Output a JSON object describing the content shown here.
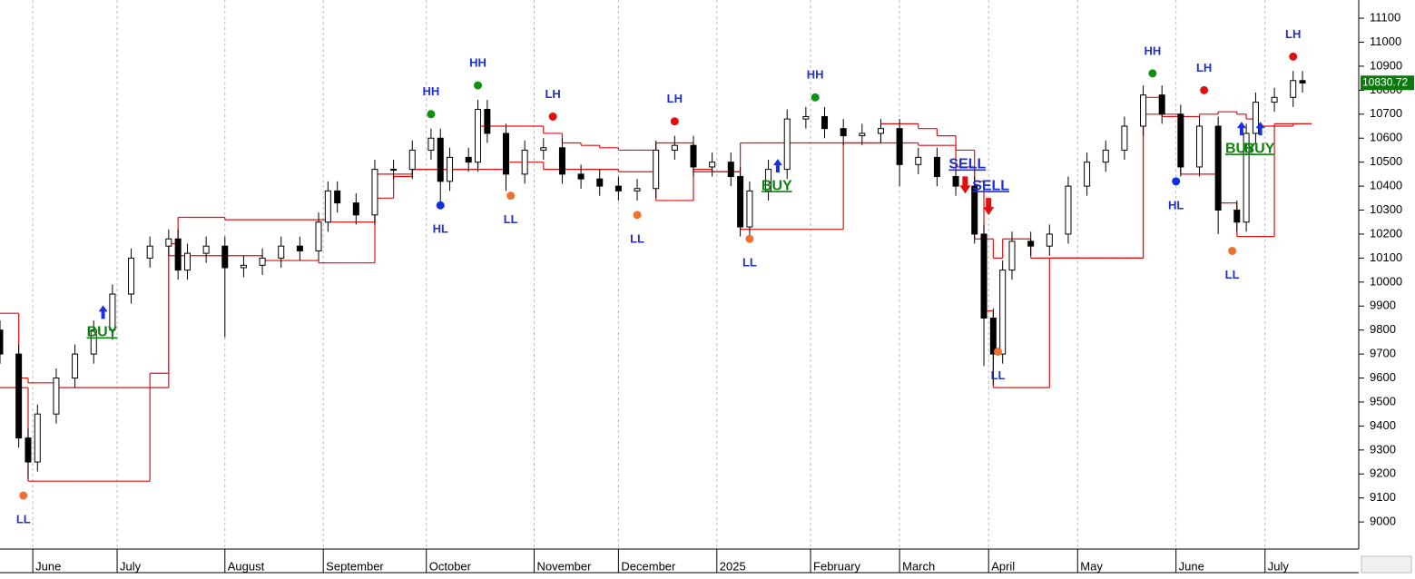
{
  "chart_data": {
    "type": "candlestick",
    "xlim": [
      0,
      290
    ],
    "ylim": [
      8887,
      11176
    ],
    "yticks": [
      9000,
      9100,
      9200,
      9300,
      9400,
      9500,
      9600,
      9700,
      9800,
      9900,
      10000,
      10100,
      10200,
      10300,
      10400,
      10500,
      10600,
      10700,
      10800,
      10900,
      11000,
      11100
    ],
    "xticks": [
      {
        "value": 7,
        "label": "June"
      },
      {
        "value": 25,
        "label": "July"
      },
      {
        "value": 48,
        "label": "August"
      },
      {
        "value": 69,
        "label": "September"
      },
      {
        "value": 91,
        "label": "October"
      },
      {
        "value": 114,
        "label": "November"
      },
      {
        "value": 132,
        "label": "December"
      },
      {
        "value": 153,
        "label": "2025"
      },
      {
        "value": 173,
        "label": "February"
      },
      {
        "value": 192,
        "label": "March"
      },
      {
        "value": 211,
        "label": "April"
      },
      {
        "value": 230,
        "label": "May"
      },
      {
        "value": 251,
        "label": "June"
      },
      {
        "value": 270,
        "label": "July"
      }
    ],
    "grid": true,
    "x": [
      0,
      4,
      6,
      8,
      12,
      16,
      20,
      24,
      28,
      32,
      36,
      38,
      40,
      44,
      48,
      52,
      56,
      60,
      64,
      68,
      70,
      72,
      76,
      80,
      84,
      88,
      92,
      94,
      96,
      100,
      102,
      104,
      108,
      112,
      116,
      120,
      124,
      128,
      132,
      136,
      140,
      144,
      148,
      152,
      156,
      158,
      160,
      164,
      168,
      172,
      176,
      180,
      184,
      188,
      192,
      196,
      200,
      204,
      208,
      210,
      212,
      214,
      216,
      220,
      224,
      228,
      232,
      236,
      240,
      244,
      248,
      252,
      256,
      260,
      264,
      266,
      268,
      272,
      276,
      278
    ],
    "open": [
      9800,
      9700,
      9350,
      9250,
      9450,
      9600,
      9700,
      9800,
      9950,
      10100,
      10150,
      10180,
      10050,
      10120,
      10150,
      10060,
      10070,
      10100,
      10150,
      10130,
      10250,
      10380,
      10330,
      10280,
      10470,
      10470,
      10550,
      10600,
      10420,
      10520,
      10500,
      10720,
      10620,
      10450,
      10550,
      10560,
      10450,
      10430,
      10400,
      10380,
      10390,
      10550,
      10570,
      10480,
      10500,
      10440,
      10230,
      10380,
      10470,
      10680,
      10690,
      10640,
      10610,
      10620,
      10640,
      10490,
      10520,
      10440,
      10400,
      10200,
      9850,
      9700,
      10050,
      10170,
      10150,
      10200,
      10400,
      10500,
      10550,
      10650,
      10780,
      10700,
      10480,
      10650,
      10300,
      10250,
      10620,
      10750,
      10770,
      10840
    ],
    "high": [
      9840,
      9740,
      9390,
      9490,
      9640,
      9740,
      9840,
      9990,
      10140,
      10190,
      10220,
      10220,
      10160,
      10190,
      10190,
      10110,
      10140,
      10190,
      10190,
      10290,
      10420,
      10420,
      10370,
      10510,
      10510,
      10590,
      10640,
      10640,
      10560,
      10560,
      10760,
      10760,
      10660,
      10590,
      10600,
      10600,
      10490,
      10470,
      10440,
      10430,
      10590,
      10610,
      10610,
      10540,
      10540,
      10480,
      10420,
      10510,
      10720,
      10730,
      10730,
      10680,
      10660,
      10680,
      10680,
      10560,
      10560,
      10480,
      10440,
      10240,
      9890,
      10090,
      10210,
      10210,
      10240,
      10440,
      10540,
      10590,
      10690,
      10820,
      10820,
      10740,
      10690,
      10690,
      10340,
      10660,
      10790,
      10810,
      10880,
      10880
    ],
    "low": [
      9660,
      9310,
      9180,
      9210,
      9410,
      9560,
      9660,
      9760,
      9910,
      10060,
      10110,
      10010,
      10010,
      10080,
      9770,
      10020,
      10030,
      10060,
      10090,
      10090,
      10210,
      10290,
      10240,
      10240,
      10430,
      10430,
      10510,
      10330,
      10380,
      10460,
      10460,
      10580,
      10380,
      10410,
      10510,
      10410,
      10390,
      10360,
      10340,
      10340,
      10350,
      10510,
      10440,
      10440,
      10400,
      10190,
      10190,
      10340,
      10430,
      10640,
      10600,
      10570,
      10570,
      10580,
      10400,
      10450,
      10400,
      10360,
      10160,
      9650,
      9570,
      9660,
      10010,
      10110,
      10110,
      10160,
      10360,
      10460,
      10510,
      10610,
      10660,
      10440,
      10440,
      10200,
      10210,
      10210,
      10580,
      10710,
      10730,
      10790
    ],
    "close": [
      9700,
      9350,
      9250,
      9450,
      9600,
      9700,
      9800,
      9950,
      10100,
      10150,
      10180,
      10050,
      10120,
      10150,
      10060,
      10070,
      10100,
      10150,
      10130,
      10250,
      10380,
      10330,
      10280,
      10470,
      10470,
      10550,
      10600,
      10420,
      10520,
      10500,
      10720,
      10620,
      10450,
      10550,
      10560,
      10450,
      10430,
      10400,
      10380,
      10390,
      10550,
      10570,
      10480,
      10500,
      10440,
      10230,
      10380,
      10470,
      10680,
      10690,
      10640,
      10610,
      10620,
      10640,
      10490,
      10520,
      10440,
      10400,
      10200,
      9850,
      9700,
      10050,
      10170,
      10150,
      10200,
      10400,
      10500,
      10550,
      10650,
      10780,
      10700,
      10480,
      10650,
      10300,
      10250,
      10620,
      10750,
      10770,
      10840,
      10830
    ],
    "series": [
      {
        "color": "#e01010",
        "values": [
          9560,
          9560,
          9170,
          9170,
          9170,
          9170,
          9170,
          9170,
          9170,
          9620,
          10110,
          10110,
          10110,
          10110,
          10110,
          10110,
          10090,
          10090,
          10090,
          10080,
          10080,
          10080,
          10080,
          10350,
          10440,
          10470,
          10470,
          10470,
          10470,
          10470,
          10470,
          10470,
          10500,
          10500,
          10470,
          10470,
          10470,
          10470,
          10460,
          10460,
          10340,
          10340,
          10470,
          10460,
          10460,
          10220,
          10220,
          10220,
          10220,
          10220,
          10220,
          10580,
          10580,
          10580,
          10580,
          10570,
          10570,
          10480,
          10180,
          9880,
          9560,
          9560,
          9560,
          9560,
          10100,
          10100,
          10100,
          10100,
          10100,
          10700,
          10700,
          10450,
          10450,
          10330,
          10190,
          10190,
          10190,
          10650,
          10660,
          10660
        ]
      },
      {
        "color": "#e01010",
        "values": [
          9870,
          9600,
          9580,
          9580,
          9560,
          9560,
          9560,
          9560,
          9560,
          9560,
          10160,
          10270,
          10270,
          10270,
          10260,
          10260,
          10260,
          10260,
          10260,
          10260,
          10250,
          10250,
          10250,
          10450,
          10450,
          10470,
          10470,
          10470,
          10470,
          10470,
          10650,
          10650,
          10650,
          10650,
          10620,
          10580,
          10570,
          10560,
          10550,
          10550,
          10580,
          10580,
          10460,
          10460,
          10460,
          10580,
          10580,
          10580,
          10580,
          10580,
          10580,
          10580,
          10580,
          10660,
          10660,
          10640,
          10610,
          10550,
          10420,
          10180,
          10100,
          10180,
          10180,
          10100,
          10100,
          10100,
          10100,
          10100,
          10100,
          10770,
          10690,
          10690,
          10700,
          10710,
          10700,
          10680,
          10650,
          10660,
          10660,
          10660
        ]
      }
    ],
    "signals": [
      {
        "label": "LL",
        "x": 5,
        "y": 9110,
        "color": "#f07030",
        "side": "below"
      },
      {
        "label": "HH",
        "x": 92,
        "y": 10700,
        "color": "#109010",
        "side": "above"
      },
      {
        "label": "HL",
        "x": 94,
        "y": 10320,
        "color": "#1030e0",
        "side": "below"
      },
      {
        "label": "HH",
        "x": 102,
        "y": 10820,
        "color": "#109010",
        "side": "above"
      },
      {
        "label": "LL",
        "x": 109,
        "y": 10360,
        "color": "#f07030",
        "side": "below"
      },
      {
        "label": "LH",
        "x": 118,
        "y": 10690,
        "color": "#e01010",
        "side": "above"
      },
      {
        "label": "LL",
        "x": 136,
        "y": 10280,
        "color": "#f07030",
        "side": "below"
      },
      {
        "label": "LH",
        "x": 144,
        "y": 10670,
        "color": "#e01010",
        "side": "above"
      },
      {
        "label": "LL",
        "x": 160,
        "y": 10180,
        "color": "#f07030",
        "side": "below"
      },
      {
        "label": "HH",
        "x": 174,
        "y": 10770,
        "color": "#109010",
        "side": "above"
      },
      {
        "label": "LL",
        "x": 213,
        "y": 9710,
        "color": "#f07030",
        "side": "below"
      },
      {
        "label": "HH",
        "x": 246,
        "y": 10870,
        "color": "#109010",
        "side": "above"
      },
      {
        "label": "HL",
        "x": 251,
        "y": 10420,
        "color": "#1030e0",
        "side": "below"
      },
      {
        "label": "LH",
        "x": 257,
        "y": 10800,
        "color": "#e01010",
        "side": "above"
      },
      {
        "label": "LL",
        "x": 263,
        "y": 10130,
        "color": "#f07030",
        "side": "below"
      },
      {
        "label": "LH",
        "x": 276,
        "y": 10940,
        "color": "#e01010",
        "side": "above"
      }
    ],
    "trades": [
      {
        "label": "BUY",
        "x": 22,
        "y": 9790,
        "color": "#108010"
      },
      {
        "label": "BUY",
        "x": 166,
        "y": 10400,
        "color": "#108010"
      },
      {
        "label": "SELL",
        "x": 206,
        "y": 10490,
        "color": "#1a30d0"
      },
      {
        "label": "SELL",
        "x": 211,
        "y": 10400,
        "color": "#1a30d0"
      },
      {
        "label": "BUY",
        "x": 265,
        "y": 10555,
        "color": "#108010"
      },
      {
        "label": "BUY",
        "x": 269,
        "y": 10555,
        "color": "#108010"
      }
    ],
    "last_price": 10830.72
  }
}
